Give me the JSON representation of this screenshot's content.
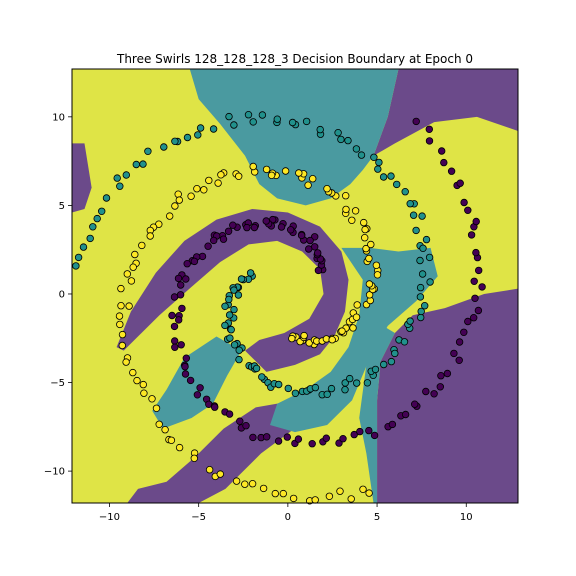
{
  "chart_data": {
    "type": "scatter",
    "title": "Three Swirls 128_128_128_3 Decision Boundary at Epoch 0",
    "xlabel": "",
    "ylabel": "",
    "xlim": [
      -12.1,
      12.9
    ],
    "ylim": [
      -11.8,
      12.7
    ],
    "xticks": [
      -10,
      -5,
      0,
      5,
      10
    ],
    "yticks": [
      -10,
      -5,
      0,
      5,
      10
    ],
    "grid": false,
    "legend": "none",
    "classes": [
      {
        "name": "",
        "color": "#440154"
      },
      {
        "name": "",
        "color": "#21918c"
      },
      {
        "name": "",
        "color": "#fde725"
      }
    ],
    "region_colors": {
      "class0": "#6b4a8a",
      "class1": "#4a9aa0",
      "class2": "#dfe446"
    },
    "point_count_note": ""
  }
}
